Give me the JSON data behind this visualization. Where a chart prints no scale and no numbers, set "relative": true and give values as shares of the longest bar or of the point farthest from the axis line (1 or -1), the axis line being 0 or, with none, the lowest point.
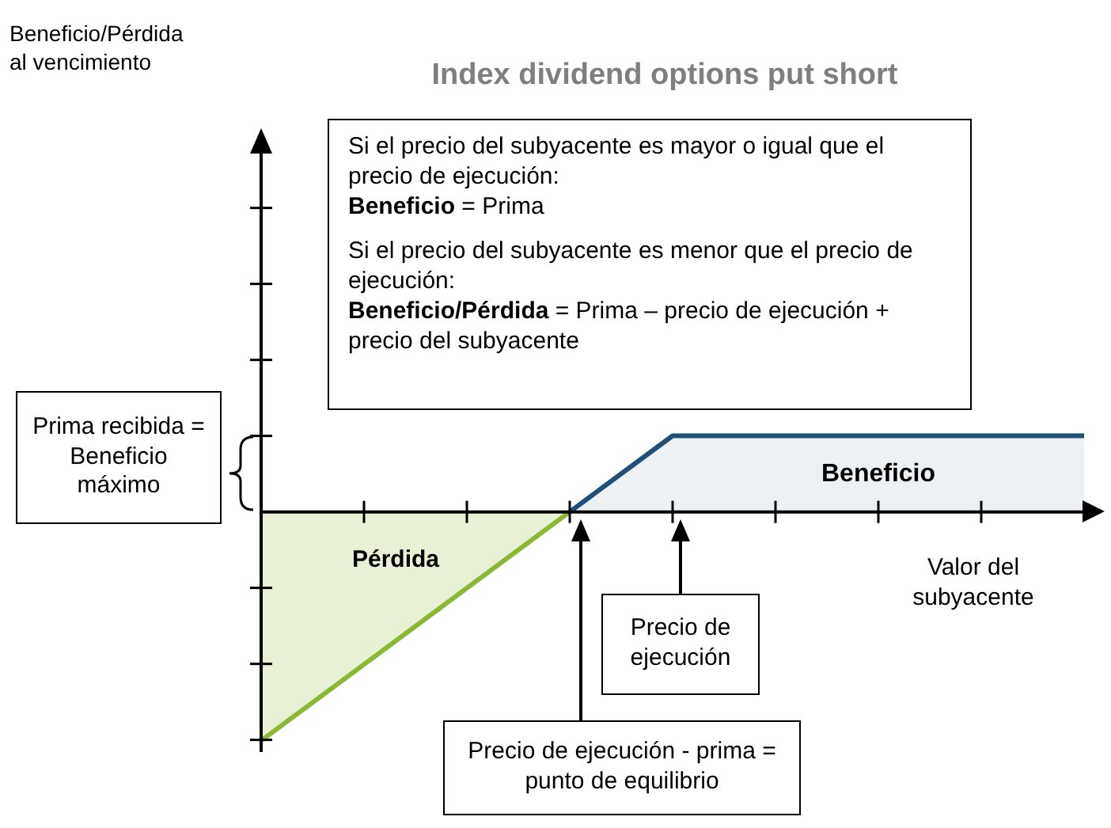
{
  "chart_data": {
    "type": "area",
    "title": "Index dividend options put short",
    "xlabel": "Valor del subyacente",
    "relative": true,
    "categories": [
      null,
      null,
      null,
      null,
      null,
      null,
      null,
      null,
      null
    ],
    "series": [
      {
        "color": "#8ab833",
        "values": [
          -1,
          -0.667,
          -0.333,
          0,
          null,
          null,
          null,
          null,
          null
        ]
      },
      {
        "color": "#1f4e79",
        "values": [
          null,
          null,
          null,
          0,
          0.333,
          0.333,
          0.333,
          0.333,
          0.333
        ]
      }
    ],
    "annotations": [
      "Si el precio del subyacente es mayor o igual que el precio de ejecución:",
      "Beneficio = Prima",
      "Si el precio del subyacente es menor que el precio de ejecución:",
      "Beneficio/Pérdida = Prima – precio de ejecución + precio del subyacente",
      "Prima recibida = Beneficio máximo",
      "Pérdida",
      "Beneficio",
      "Precio de ejecución",
      "Precio de ejecución - prima = punto de equilibrio",
      "Beneficio/Pérdida al vencimiento"
    ],
    "grid": false,
    "legend": false,
    "marker": "none"
  }
}
